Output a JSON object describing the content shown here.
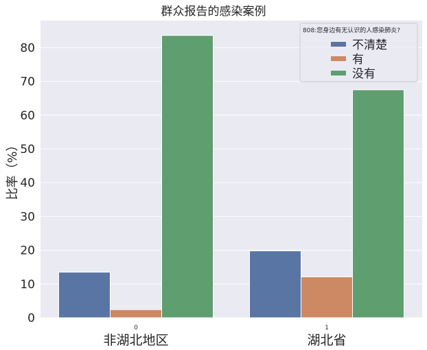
{
  "chart_data": {
    "type": "bar",
    "title": "群众报告的感染案例",
    "ylabel": "比率（%）",
    "xlabel": "",
    "categories": [
      "0",
      "1"
    ],
    "category_labels": [
      "非湖北地区",
      "湖北省"
    ],
    "ylim": [
      0,
      88
    ],
    "yticks": [
      0,
      10,
      20,
      30,
      40,
      50,
      60,
      70,
      80
    ],
    "grid": true,
    "legend": {
      "title": "808:您身边有无认识的人感染肺炎?",
      "placement": "top-right"
    },
    "series": [
      {
        "name": "不清楚",
        "color": "#5975a4",
        "values": [
          13.5,
          19.8
        ]
      },
      {
        "name": "有",
        "color": "#cc8963",
        "values": [
          2.4,
          12.1
        ]
      },
      {
        "name": "没有",
        "color": "#5f9e6e",
        "values": [
          83.6,
          67.5
        ]
      }
    ]
  }
}
